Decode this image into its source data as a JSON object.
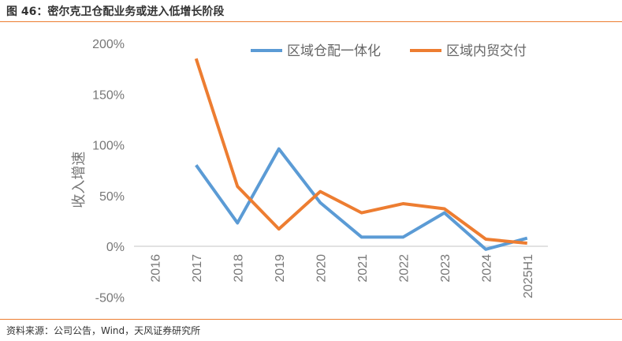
{
  "title": "图 46：密尔克卫仓配业务或进入低增长阶段",
  "source": "资料来源：公司公告，Wind，天风证券研究所",
  "chart_data": {
    "type": "line",
    "ylabel": "收入增速",
    "ylim": [
      -0.5,
      2.0
    ],
    "yticks": [
      "-50%",
      "0%",
      "50%",
      "100%",
      "150%",
      "200%"
    ],
    "ytick_values": [
      -0.5,
      0,
      0.5,
      1.0,
      1.5,
      2.0
    ],
    "categories": [
      "2016",
      "2017",
      "2018",
      "2019",
      "2020",
      "2021",
      "2022",
      "2023",
      "2024",
      "2025H1"
    ],
    "legend_position": "top",
    "grid": false,
    "series": [
      {
        "name": "区域仓配一体化",
        "color": "#5B9BD5",
        "values": [
          null,
          0.8,
          0.23,
          0.96,
          0.43,
          0.09,
          0.09,
          0.33,
          -0.03,
          0.08
        ]
      },
      {
        "name": "区域内贸交付",
        "color": "#ED7D31",
        "values": [
          null,
          1.85,
          0.59,
          0.17,
          0.54,
          0.33,
          0.42,
          0.37,
          0.07,
          0.03
        ]
      }
    ]
  }
}
